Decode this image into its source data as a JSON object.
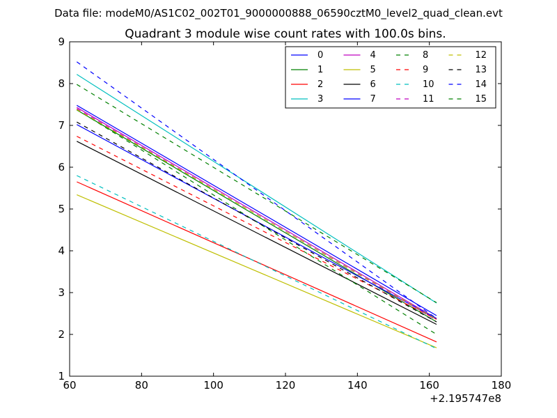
{
  "suptitle": "Data file: modeM0/AS1C02_002T01_9000000888_06590cztM0_level2_quad_clean.evt",
  "chart_data": {
    "type": "line",
    "title": "Quadrant 3 module wise count rates with 100.0s bins.",
    "xlabel": "",
    "ylabel": "",
    "x_offset_label": "+2.195747e8",
    "xlim": [
      60,
      180
    ],
    "ylim": [
      1,
      9
    ],
    "xticks": [
      60,
      80,
      100,
      120,
      140,
      160,
      180
    ],
    "yticks": [
      1,
      2,
      3,
      4,
      5,
      6,
      7,
      8,
      9
    ],
    "legend_position": "top-right",
    "legend_columns": 4,
    "series": [
      {
        "name": "0",
        "color": "#0000ff",
        "dash": "solid",
        "x": [
          62,
          162
        ],
        "y": [
          7.48,
          2.45
        ]
      },
      {
        "name": "1",
        "color": "#008000",
        "dash": "solid",
        "x": [
          62,
          162
        ],
        "y": [
          7.37,
          2.3
        ]
      },
      {
        "name": "2",
        "color": "#ff0000",
        "dash": "solid",
        "x": [
          62,
          162
        ],
        "y": [
          5.65,
          1.82
        ]
      },
      {
        "name": "3",
        "color": "#00bfbf",
        "dash": "solid",
        "x": [
          62,
          162
        ],
        "y": [
          8.22,
          2.75
        ]
      },
      {
        "name": "4",
        "color": "#bf00bf",
        "dash": "solid",
        "x": [
          62,
          162
        ],
        "y": [
          7.43,
          2.38
        ]
      },
      {
        "name": "5",
        "color": "#bfbf00",
        "dash": "solid",
        "x": [
          62,
          162
        ],
        "y": [
          5.34,
          1.68
        ]
      },
      {
        "name": "6",
        "color": "#000000",
        "dash": "solid",
        "x": [
          62,
          162
        ],
        "y": [
          6.62,
          2.24
        ]
      },
      {
        "name": "7",
        "color": "#0000ff",
        "dash": "solid",
        "x": [
          62,
          162
        ],
        "y": [
          7.02,
          2.38
        ]
      },
      {
        "name": "8",
        "color": "#008000",
        "dash": "dashed",
        "x": [
          62,
          162
        ],
        "y": [
          7.38,
          2.0
        ]
      },
      {
        "name": "9",
        "color": "#ff0000",
        "dash": "dashed",
        "x": [
          62,
          162
        ],
        "y": [
          6.74,
          2.36
        ]
      },
      {
        "name": "10",
        "color": "#00bfbf",
        "dash": "dashed",
        "x": [
          62,
          162
        ],
        "y": [
          5.8,
          1.66
        ]
      },
      {
        "name": "11",
        "color": "#bf00bf",
        "dash": "dashed",
        "x": [
          62,
          162
        ],
        "y": [
          7.4,
          2.34
        ]
      },
      {
        "name": "12",
        "color": "#bfbf00",
        "dash": "dashed",
        "x": [
          62,
          162
        ],
        "y": [
          7.38,
          2.36
        ]
      },
      {
        "name": "13",
        "color": "#000000",
        "dash": "dashed",
        "x": [
          62,
          162
        ],
        "y": [
          7.08,
          2.3
        ]
      },
      {
        "name": "14",
        "color": "#0000ff",
        "dash": "dashed",
        "x": [
          62,
          162
        ],
        "y": [
          8.52,
          2.38
        ]
      },
      {
        "name": "15",
        "color": "#008000",
        "dash": "dashed",
        "x": [
          62,
          162
        ],
        "y": [
          7.98,
          2.76
        ]
      }
    ]
  }
}
